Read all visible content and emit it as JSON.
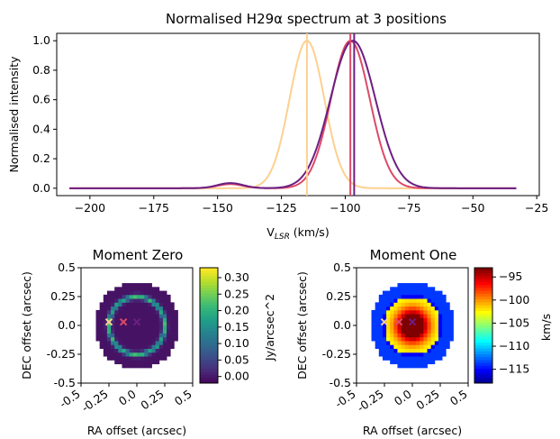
{
  "chart_data": [
    {
      "type": "line",
      "title": "Normalised H29α spectrum at 3 positions",
      "xlabel": "V_LSR (km/s)",
      "xlabel_main": "V",
      "xlabel_sub": "LSR",
      "xlabel_unit": " (km/s)",
      "ylabel": "Normalised intensity",
      "xlim": [
        -213,
        -24
      ],
      "ylim": [
        -0.05,
        1.05
      ],
      "xticks": [
        -200,
        -175,
        -150,
        -125,
        -100,
        -75,
        -50,
        -25
      ],
      "yticks": [
        0.0,
        0.2,
        0.4,
        0.6,
        0.8,
        1.0
      ],
      "grid": false,
      "series": [
        {
          "color": "#fdd090",
          "peak_x": -115,
          "peak_y": 1.0,
          "width": 6.8,
          "bump_x": null,
          "bump_y": 0,
          "x_range": [
            -208,
            -33
          ]
        },
        {
          "color": "#dd4a68",
          "peak_x": -98,
          "peak_y": 1.0,
          "width": 7.6,
          "bump_x": -145,
          "bump_y": 0.028,
          "x_range": [
            -208,
            -33
          ]
        },
        {
          "color": "#6c1f82",
          "peak_x": -97,
          "peak_y": 1.0,
          "width": 8.8,
          "bump_x": -145,
          "bump_y": 0.035,
          "x_range": [
            -208,
            -33
          ]
        }
      ],
      "vlines": [
        {
          "x": -115,
          "color": "#fdd090"
        },
        {
          "x": -98,
          "color": "#dd4a68"
        },
        {
          "x": -96.5,
          "color": "#6c1f82"
        }
      ]
    },
    {
      "type": "heatmap",
      "title": "Moment Zero",
      "xlabel": "RA offset (arcsec)",
      "ylabel": "DEC offset (arcsec)",
      "xlim": [
        -0.5,
        0.5
      ],
      "ylim": [
        -0.5,
        0.5
      ],
      "xticks": [
        "-0.5",
        "-0.25",
        "0.0",
        "0.25",
        "0.5"
      ],
      "yticks": [
        "-0.5",
        "-0.25",
        "0.0",
        "0.25",
        "0.5"
      ],
      "colorbar": {
        "label": "Jy/arcsec^2",
        "ticks": [
          "0.30",
          "0.25",
          "0.20",
          "0.15",
          "0.10",
          "0.05",
          "0.00"
        ],
        "range": [
          -0.02,
          0.33
        ]
      },
      "disk_radius": 0.38,
      "ring_radius": 0.25,
      "colormap": "viridis",
      "markers": [
        {
          "x": -0.25,
          "y": 0.03,
          "symbol": "x",
          "color": "#fdd090"
        },
        {
          "x": -0.12,
          "y": 0.03,
          "symbol": "x",
          "color": "#dd4a68"
        },
        {
          "x": 0.0,
          "y": 0.03,
          "symbol": "x",
          "color": "#6c1f82"
        }
      ]
    },
    {
      "type": "heatmap",
      "title": "Moment One",
      "xlabel": "RA offset (arcsec)",
      "ylabel": "DEC offset (arcsec)",
      "xlim": [
        -0.5,
        0.5
      ],
      "ylim": [
        -0.5,
        0.5
      ],
      "xticks": [
        "-0.5",
        "-0.25",
        "0.0",
        "0.25",
        "0.5"
      ],
      "yticks": [
        "-0.5",
        "-0.25",
        "0.0",
        "0.25",
        "0.5"
      ],
      "colorbar": {
        "label": "km/s",
        "ticks": [
          "−95",
          "−100",
          "−105",
          "−110",
          "−115"
        ],
        "range": [
          -118,
          -93
        ]
      },
      "disk_radius": 0.38,
      "ring_radius": 0.25,
      "colormap": "jet",
      "markers": [
        {
          "x": -0.25,
          "y": 0.03,
          "symbol": "x",
          "color": "#fdd090"
        },
        {
          "x": -0.12,
          "y": 0.03,
          "symbol": "x",
          "color": "#dd4a68"
        },
        {
          "x": 0.0,
          "y": 0.03,
          "symbol": "x",
          "color": "#6c1f82"
        }
      ]
    }
  ]
}
